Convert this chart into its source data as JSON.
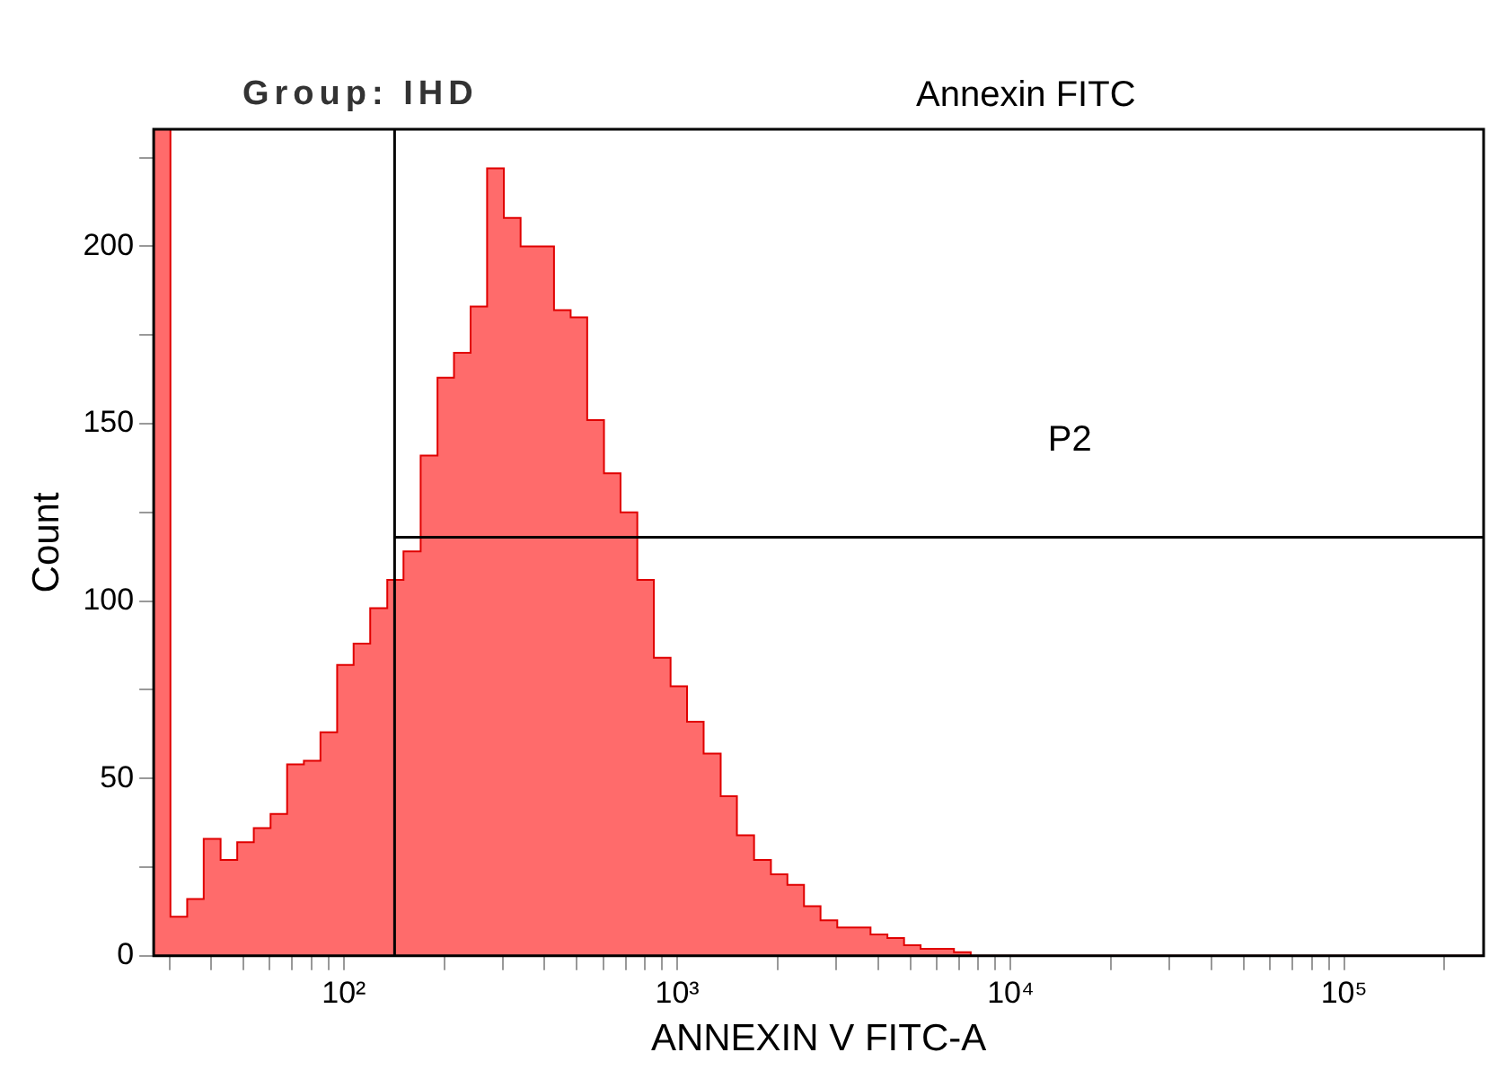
{
  "chart_data": {
    "type": "histogram",
    "title": "Group: IHD",
    "subtitle": "Annexin FITC",
    "xlabel": "ANNEXIN V FITC-A",
    "ylabel": "Count",
    "log": "x",
    "bins": [
      26.9,
      30.2,
      33.9,
      38.0,
      42.7,
      47.9,
      53.7,
      60.3,
      67.6,
      75.9,
      85.1,
      95.5,
      107,
      120,
      135,
      151,
      170,
      191,
      214,
      240,
      269,
      302,
      339,
      380,
      427,
      479,
      537,
      603,
      676,
      759,
      851,
      955,
      1070,
      1200,
      1350,
      1510,
      1700,
      1910,
      2140,
      2400,
      2690,
      3020,
      3390,
      3800,
      4270,
      4790,
      5370,
      6030,
      6760,
      7590,
      8510,
      9550,
      262144
    ],
    "values": [
      233,
      11,
      16,
      33,
      27,
      32,
      36,
      40,
      54,
      55,
      63,
      82,
      88,
      98,
      106,
      114,
      141,
      163,
      170,
      183,
      222,
      208,
      200,
      200,
      182,
      180,
      151,
      136,
      125,
      106,
      84,
      76,
      66,
      57,
      45,
      34,
      27,
      23,
      20,
      14,
      10,
      8,
      8,
      6,
      5,
      3,
      2,
      2,
      1,
      0,
      0,
      0
    ],
    "color": "#ff6b6b",
    "xlim": [
      26.9,
      262144
    ],
    "xticks": [
      {
        "value": 30,
        "label": null
      },
      {
        "value": 40,
        "label": null
      },
      {
        "value": 50,
        "label": null
      },
      {
        "value": 60,
        "label": null
      },
      {
        "value": 70,
        "label": null
      },
      {
        "value": 80,
        "label": null
      },
      {
        "value": 90,
        "label": null
      },
      {
        "value": 100,
        "label": "10²"
      },
      {
        "value": 200,
        "label": null
      },
      {
        "value": 300,
        "label": null
      },
      {
        "value": 400,
        "label": null
      },
      {
        "value": 500,
        "label": null
      },
      {
        "value": 600,
        "label": null
      },
      {
        "value": 700,
        "label": null
      },
      {
        "value": 800,
        "label": null
      },
      {
        "value": 900,
        "label": null
      },
      {
        "value": 1000,
        "label": "10³"
      },
      {
        "value": 2000,
        "label": null
      },
      {
        "value": 3000,
        "label": null
      },
      {
        "value": 4000,
        "label": null
      },
      {
        "value": 5000,
        "label": null
      },
      {
        "value": 6000,
        "label": null
      },
      {
        "value": 7000,
        "label": null
      },
      {
        "value": 8000,
        "label": null
      },
      {
        "value": 9000,
        "label": null
      },
      {
        "value": 10000,
        "label": "10⁴"
      },
      {
        "value": 20000,
        "label": null
      },
      {
        "value": 30000,
        "label": null
      },
      {
        "value": 40000,
        "label": null
      },
      {
        "value": 50000,
        "label": null
      },
      {
        "value": 60000,
        "label": null
      },
      {
        "value": 70000,
        "label": null
      },
      {
        "value": 80000,
        "label": null
      },
      {
        "value": 90000,
        "label": null
      },
      {
        "value": 100000,
        "label": "10⁵"
      },
      {
        "value": 200000,
        "label": null
      }
    ],
    "ylim": [
      0,
      233
    ],
    "yticks": [
      0,
      {
        "value": 25,
        "label": null
      },
      50,
      {
        "value": 75,
        "label": null
      },
      100,
      {
        "value": 125,
        "label": null
      },
      150,
      {
        "value": 175,
        "label": null
      },
      200,
      {
        "value": 225,
        "label": null
      }
    ],
    "ref_lines": [
      {
        "axis": "x",
        "value": 142,
        "color": "#000000"
      },
      {
        "axis": "y",
        "value": 118,
        "label": "P2",
        "color": "#000000"
      }
    ]
  }
}
